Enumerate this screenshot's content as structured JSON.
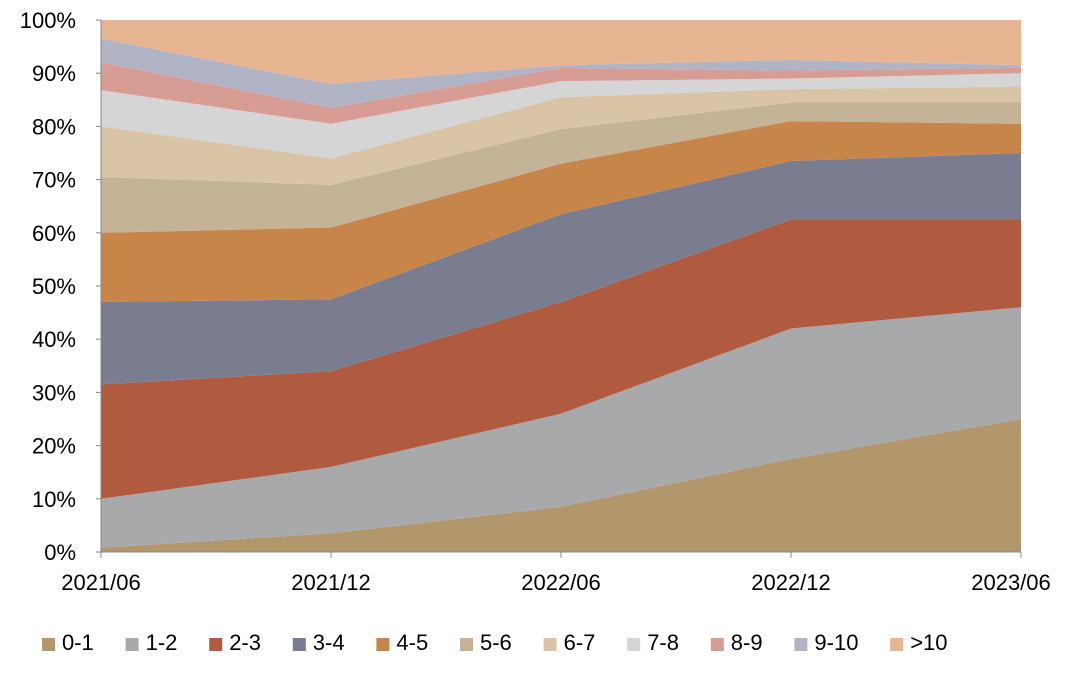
{
  "chart_data": {
    "type": "area",
    "stacked": true,
    "normalized_percent": true,
    "categories": [
      "2021/06",
      "2021/12",
      "2022/06",
      "2022/12",
      "2023/06"
    ],
    "y_tick_labels": [
      "0%",
      "10%",
      "20%",
      "30%",
      "40%",
      "50%",
      "60%",
      "70%",
      "80%",
      "90%",
      "100%"
    ],
    "ylim": [
      0,
      100
    ],
    "grid": false,
    "legend_position": "bottom",
    "series": [
      {
        "name": "0-1",
        "color": "#b2976c",
        "values": [
          0.8,
          3.5,
          8.5,
          17.5,
          25.0
        ]
      },
      {
        "name": "1-2",
        "color": "#a8a9ab",
        "values": [
          9.2,
          12.5,
          17.5,
          24.5,
          21.0
        ]
      },
      {
        "name": "2-3",
        "color": "#b05b40",
        "values": [
          21.5,
          18.0,
          21.0,
          20.5,
          16.5
        ]
      },
      {
        "name": "3-4",
        "color": "#7a7d90",
        "values": [
          15.5,
          13.5,
          16.5,
          11.0,
          12.5
        ]
      },
      {
        "name": "4-5",
        "color": "#c8854a",
        "values": [
          13.0,
          13.5,
          9.5,
          7.5,
          5.5
        ]
      },
      {
        "name": "5-6",
        "color": "#c4b396",
        "values": [
          10.5,
          8.0,
          6.5,
          3.5,
          4.0
        ]
      },
      {
        "name": "6-7",
        "color": "#d9c5a6",
        "values": [
          9.5,
          5.0,
          6.0,
          2.5,
          3.0
        ]
      },
      {
        "name": "7-8",
        "color": "#d5d5d6",
        "values": [
          6.8,
          6.5,
          3.0,
          2.0,
          2.5
        ]
      },
      {
        "name": "8-9",
        "color": "#d79d95",
        "values": [
          5.2,
          3.0,
          2.5,
          1.5,
          1.0
        ]
      },
      {
        "name": "9-10",
        "color": "#b1b4c5",
        "values": [
          4.5,
          4.5,
          0.5,
          2.0,
          0.5
        ]
      },
      {
        "name": ">10",
        "color": "#e8b593",
        "values": [
          3.5,
          12.0,
          8.5,
          7.5,
          8.5
        ]
      }
    ]
  }
}
